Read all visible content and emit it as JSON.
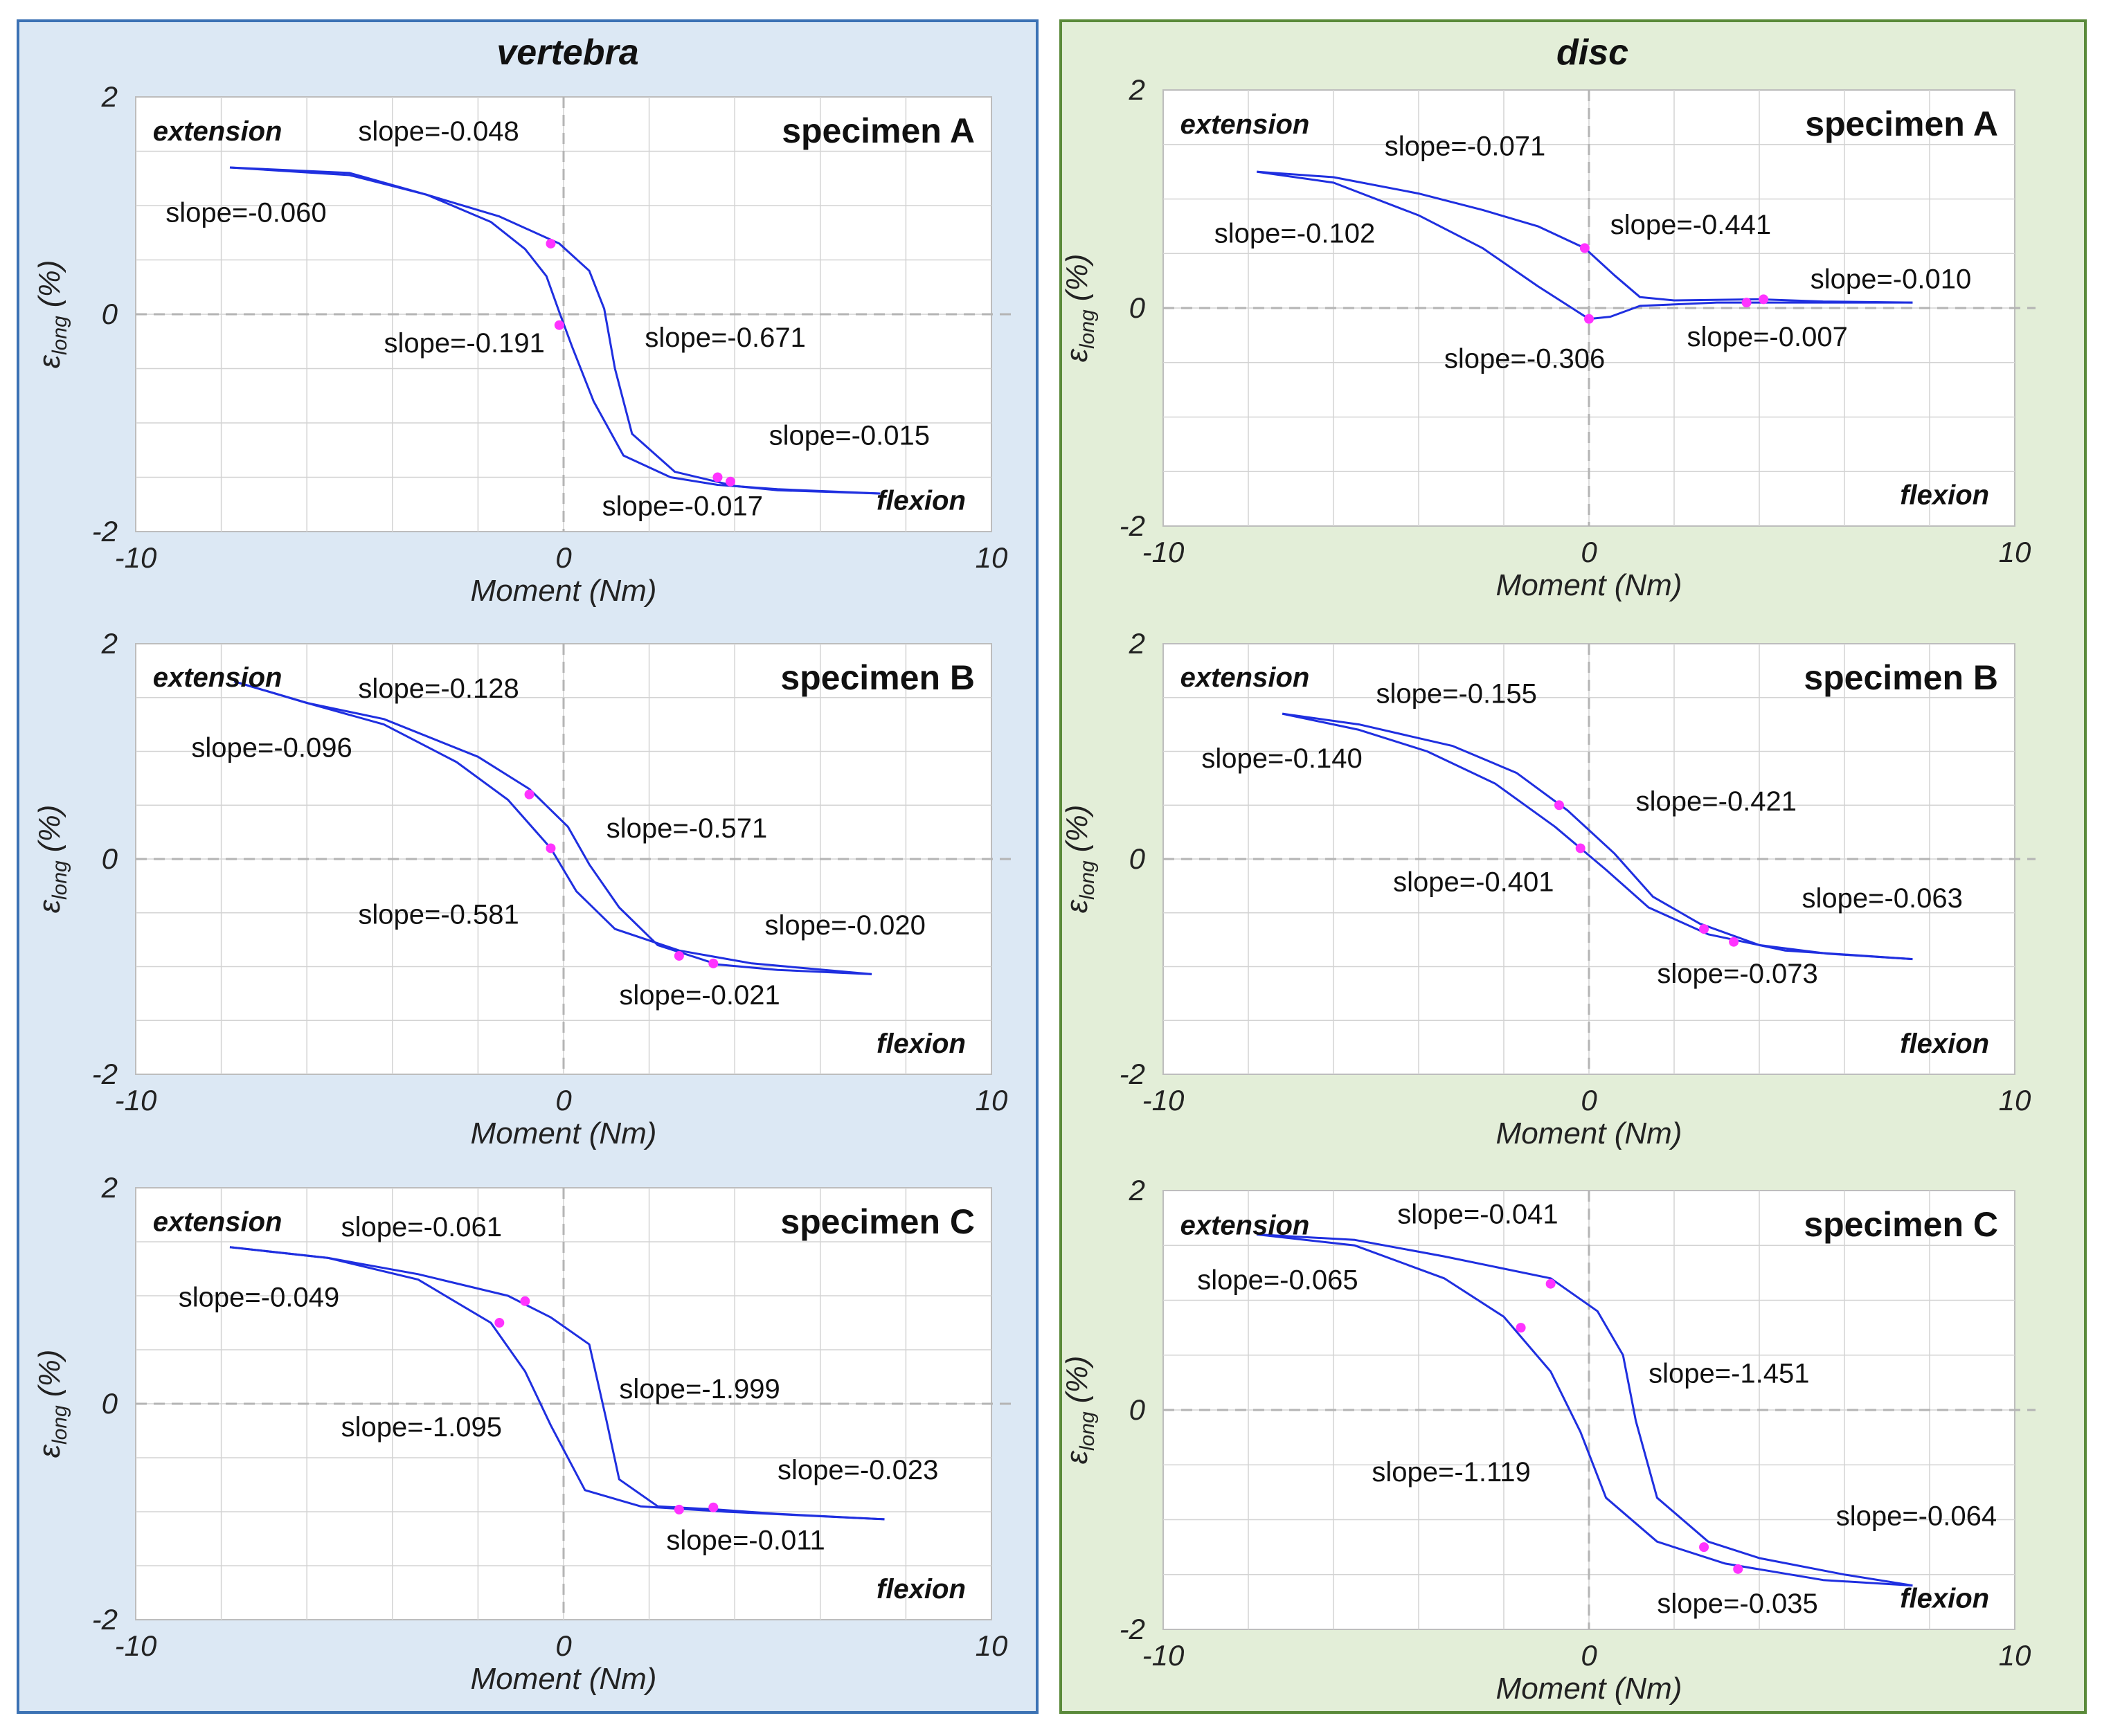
{
  "columns": [
    {
      "title": "vertebra"
    },
    {
      "title": "disc"
    }
  ],
  "styles": {
    "curve_color": "#1f2fe0",
    "point_color": "#ff33ff",
    "grid_color": "#d3d3d3",
    "zero_line_color": "#b4b4b4"
  },
  "chart_data": [
    {
      "id": "vA",
      "type": "line",
      "column": "vertebra",
      "title": "specimen A",
      "xlabel": "Moment (Nm)",
      "ylabel_main": "ε",
      "ylabel_sub": "long",
      "ylabel_tail": " (%)",
      "xlim": [
        -10,
        10
      ],
      "ylim": [
        -2,
        2
      ],
      "xticks": [
        -10,
        0,
        10
      ],
      "yticks": [
        -2,
        0,
        2
      ],
      "grid": true,
      "extension_label": "extension",
      "flexion_label": "flexion",
      "loading_path": [
        [
          -7.8,
          1.35
        ],
        [
          -5,
          1.3
        ],
        [
          -3.2,
          1.1
        ],
        [
          -1.7,
          0.85
        ],
        [
          -0.9,
          0.6
        ],
        [
          -0.4,
          0.35
        ],
        [
          -0.1,
          0.02
        ],
        [
          0.2,
          -0.3
        ],
        [
          0.7,
          -0.8
        ],
        [
          1.4,
          -1.3
        ],
        [
          2.5,
          -1.5
        ],
        [
          3.6,
          -1.57
        ],
        [
          5,
          -1.61
        ],
        [
          7.4,
          -1.65
        ]
      ],
      "unloading_path": [
        [
          7.4,
          -1.65
        ],
        [
          5,
          -1.62
        ],
        [
          4,
          -1.58
        ],
        [
          2.6,
          -1.45
        ],
        [
          1.6,
          -1.1
        ],
        [
          1.2,
          -0.5
        ],
        [
          0.95,
          0.05
        ],
        [
          0.6,
          0.4
        ],
        [
          -0.1,
          0.65
        ],
        [
          -1.5,
          0.9
        ],
        [
          -3.2,
          1.1
        ],
        [
          -5,
          1.28
        ],
        [
          -7.8,
          1.35
        ]
      ],
      "points": [
        [
          -0.3,
          0.65
        ],
        [
          -0.1,
          -0.1
        ],
        [
          3.6,
          -1.5
        ],
        [
          3.9,
          -1.54
        ]
      ],
      "slopes": [
        {
          "text": "slope=-0.048",
          "x": -4.8,
          "y": 1.6
        },
        {
          "text": "slope=-0.060",
          "x": -9.3,
          "y": 0.85
        },
        {
          "text": "slope=-0.191",
          "x": -4.2,
          "y": -0.35
        },
        {
          "text": "slope=-0.671",
          "x": 1.9,
          "y": -0.3
        },
        {
          "text": "slope=-0.015",
          "x": 4.8,
          "y": -1.2
        },
        {
          "text": "slope=-0.017",
          "x": 0.9,
          "y": -1.85
        }
      ]
    },
    {
      "id": "vB",
      "type": "line",
      "column": "vertebra",
      "title": "specimen B",
      "xlabel": "Moment (Nm)",
      "ylabel_main": "ε",
      "ylabel_sub": "long",
      "ylabel_tail": " (%)",
      "xlim": [
        -10,
        10
      ],
      "ylim": [
        -2,
        2
      ],
      "xticks": [
        -10,
        0,
        10
      ],
      "yticks": [
        -2,
        0,
        2
      ],
      "grid": true,
      "extension_label": "extension",
      "flexion_label": "flexion",
      "loading_path": [
        [
          -7.7,
          1.65
        ],
        [
          -6,
          1.45
        ],
        [
          -4.2,
          1.25
        ],
        [
          -2.5,
          0.9
        ],
        [
          -1.3,
          0.55
        ],
        [
          -0.3,
          0.1
        ],
        [
          0.3,
          -0.3
        ],
        [
          1.2,
          -0.65
        ],
        [
          2.7,
          -0.85
        ],
        [
          4.4,
          -0.97
        ],
        [
          7.2,
          -1.07
        ]
      ],
      "unloading_path": [
        [
          7.2,
          -1.07
        ],
        [
          5,
          -1.03
        ],
        [
          3.6,
          -0.98
        ],
        [
          2.2,
          -0.8
        ],
        [
          1.3,
          -0.45
        ],
        [
          0.6,
          -0.05
        ],
        [
          0.1,
          0.3
        ],
        [
          -0.8,
          0.65
        ],
        [
          -2,
          0.95
        ],
        [
          -4.2,
          1.3
        ],
        [
          -6,
          1.45
        ],
        [
          -7.7,
          1.65
        ]
      ],
      "points": [
        [
          -0.8,
          0.6
        ],
        [
          -0.3,
          0.1
        ],
        [
          2.7,
          -0.9
        ],
        [
          3.5,
          -0.97
        ]
      ],
      "slopes": [
        {
          "text": "slope=-0.128",
          "x": -4.8,
          "y": 1.5
        },
        {
          "text": "slope=-0.096",
          "x": -8.7,
          "y": 0.95
        },
        {
          "text": "slope=-0.581",
          "x": -4.8,
          "y": -0.6
        },
        {
          "text": "slope=-0.571",
          "x": 1,
          "y": 0.2
        },
        {
          "text": "slope=-0.020",
          "x": 4.7,
          "y": -0.7
        },
        {
          "text": "slope=-0.021",
          "x": 1.3,
          "y": -1.35
        }
      ]
    },
    {
      "id": "vC",
      "type": "line",
      "column": "vertebra",
      "title": "specimen C",
      "xlabel": "Moment (Nm)",
      "ylabel_main": "ε",
      "ylabel_sub": "long",
      "ylabel_tail": " (%)",
      "xlim": [
        -10,
        10
      ],
      "ylim": [
        -2,
        2
      ],
      "xticks": [
        -10,
        0,
        10
      ],
      "yticks": [
        -2,
        0,
        2
      ],
      "grid": true,
      "extension_label": "extension",
      "flexion_label": "flexion",
      "loading_path": [
        [
          -7.8,
          1.45
        ],
        [
          -5.5,
          1.35
        ],
        [
          -3.4,
          1.15
        ],
        [
          -1.7,
          0.75
        ],
        [
          -0.9,
          0.3
        ],
        [
          -0.3,
          -0.2
        ],
        [
          0.5,
          -0.8
        ],
        [
          1.8,
          -0.95
        ],
        [
          3.8,
          -1
        ],
        [
          7.5,
          -1.07
        ]
      ],
      "unloading_path": [
        [
          7.5,
          -1.07
        ],
        [
          5,
          -1.02
        ],
        [
          3.6,
          -0.98
        ],
        [
          2.2,
          -0.95
        ],
        [
          1.3,
          -0.7
        ],
        [
          1,
          -0.15
        ],
        [
          0.6,
          0.55
        ],
        [
          -0.3,
          0.8
        ],
        [
          -1.3,
          1
        ],
        [
          -3.4,
          1.2
        ],
        [
          -5.5,
          1.35
        ],
        [
          -7.8,
          1.45
        ]
      ],
      "points": [
        [
          -1.5,
          0.75
        ],
        [
          -0.9,
          0.95
        ],
        [
          2.7,
          -0.98
        ],
        [
          3.5,
          -0.96
        ]
      ],
      "slopes": [
        {
          "text": "slope=-0.061",
          "x": -5.2,
          "y": 1.55
        },
        {
          "text": "slope=-0.049",
          "x": -9,
          "y": 0.9
        },
        {
          "text": "slope=-1.095",
          "x": -5.2,
          "y": -0.3
        },
        {
          "text": "slope=-1.999",
          "x": 1.3,
          "y": 0.05
        },
        {
          "text": "slope=-0.023",
          "x": 5,
          "y": -0.7
        },
        {
          "text": "slope=-0.011",
          "x": 2.4,
          "y": -1.35
        }
      ]
    },
    {
      "id": "dA",
      "type": "line",
      "column": "disc",
      "title": "specimen A",
      "xlabel": "Moment (Nm)",
      "ylabel_main": "ε",
      "ylabel_sub": "long",
      "ylabel_tail": " (%)",
      "xlim": [
        -10,
        10
      ],
      "ylim": [
        -2,
        2
      ],
      "xticks": [
        -10,
        0,
        10
      ],
      "yticks": [
        -2,
        0,
        2
      ],
      "grid": true,
      "extension_label": "extension",
      "flexion_label": "flexion",
      "loading_path": [
        [
          -7.8,
          1.25
        ],
        [
          -6,
          1.15
        ],
        [
          -4,
          0.85
        ],
        [
          -2.5,
          0.55
        ],
        [
          -1.2,
          0.2
        ],
        [
          -0.4,
          0
        ],
        [
          0,
          -0.1
        ],
        [
          0.5,
          -0.08
        ],
        [
          1.2,
          0.02
        ],
        [
          3,
          0.05
        ],
        [
          5,
          0.05
        ],
        [
          7.6,
          0.05
        ]
      ],
      "unloading_path": [
        [
          7.6,
          0.05
        ],
        [
          5.5,
          0.06
        ],
        [
          4,
          0.08
        ],
        [
          2,
          0.07
        ],
        [
          1.2,
          0.1
        ],
        [
          0.6,
          0.3
        ],
        [
          -0.1,
          0.55
        ],
        [
          -1.2,
          0.75
        ],
        [
          -2.5,
          0.9
        ],
        [
          -4,
          1.05
        ],
        [
          -6,
          1.2
        ],
        [
          -7.8,
          1.25
        ]
      ],
      "points": [
        [
          -0.1,
          0.55
        ],
        [
          0,
          -0.1
        ],
        [
          3.7,
          0.05
        ],
        [
          4.1,
          0.08
        ]
      ],
      "slopes": [
        {
          "text": "slope=-0.071",
          "x": -4.8,
          "y": 1.4
        },
        {
          "text": "slope=-0.102",
          "x": -8.8,
          "y": 0.6
        },
        {
          "text": "slope=-0.441",
          "x": 0.5,
          "y": 0.68
        },
        {
          "text": "slope=-0.306",
          "x": -3.4,
          "y": -0.55
        },
        {
          "text": "slope=-0.007",
          "x": 2.3,
          "y": -0.35
        },
        {
          "text": "slope=-0.010",
          "x": 5.2,
          "y": 0.18
        }
      ]
    },
    {
      "id": "dB",
      "type": "line",
      "column": "disc",
      "title": "specimen B",
      "xlabel": "Moment (Nm)",
      "ylabel_main": "ε",
      "ylabel_sub": "long",
      "ylabel_tail": " (%)",
      "xlim": [
        -10,
        10
      ],
      "ylim": [
        -2,
        2
      ],
      "xticks": [
        -10,
        0,
        10
      ],
      "yticks": [
        -2,
        0,
        2
      ],
      "grid": true,
      "extension_label": "extension",
      "flexion_label": "flexion",
      "loading_path": [
        [
          -7.2,
          1.35
        ],
        [
          -5.4,
          1.2
        ],
        [
          -3.8,
          1
        ],
        [
          -2.2,
          0.7
        ],
        [
          -0.8,
          0.3
        ],
        [
          0.4,
          -0.1
        ],
        [
          1.4,
          -0.45
        ],
        [
          2.8,
          -0.7
        ],
        [
          4.6,
          -0.85
        ],
        [
          7.6,
          -0.93
        ]
      ],
      "unloading_path": [
        [
          7.6,
          -0.93
        ],
        [
          5.6,
          -0.88
        ],
        [
          4,
          -0.8
        ],
        [
          2.6,
          -0.6
        ],
        [
          1.5,
          -0.35
        ],
        [
          0.6,
          0.05
        ],
        [
          -0.5,
          0.45
        ],
        [
          -1.7,
          0.8
        ],
        [
          -3.2,
          1.05
        ],
        [
          -5.4,
          1.25
        ],
        [
          -7.2,
          1.35
        ]
      ],
      "points": [
        [
          -0.7,
          0.5
        ],
        [
          -0.2,
          0.1
        ],
        [
          2.7,
          -0.65
        ],
        [
          3.4,
          -0.77
        ]
      ],
      "slopes": [
        {
          "text": "slope=-0.155",
          "x": -5,
          "y": 1.45
        },
        {
          "text": "slope=-0.140",
          "x": -9.1,
          "y": 0.85
        },
        {
          "text": "slope=-0.421",
          "x": 1.1,
          "y": 0.45
        },
        {
          "text": "slope=-0.401",
          "x": -4.6,
          "y": -0.3
        },
        {
          "text": "slope=-0.063",
          "x": 5,
          "y": -0.45
        },
        {
          "text": "slope=-0.073",
          "x": 1.6,
          "y": -1.15
        }
      ]
    },
    {
      "id": "dC",
      "type": "line",
      "column": "disc",
      "title": "specimen C",
      "xlabel": "Moment (Nm)",
      "ylabel_main": "ε",
      "ylabel_sub": "long",
      "ylabel_tail": " (%)",
      "xlim": [
        -10,
        10
      ],
      "ylim": [
        -2,
        2
      ],
      "xticks": [
        -10,
        0,
        10
      ],
      "yticks": [
        -2,
        0,
        2
      ],
      "grid": true,
      "extension_label": "extension",
      "flexion_label": "flexion",
      "loading_path": [
        [
          -7.8,
          1.6
        ],
        [
          -5.5,
          1.5
        ],
        [
          -3.4,
          1.2
        ],
        [
          -2,
          0.85
        ],
        [
          -0.9,
          0.35
        ],
        [
          -0.2,
          -0.2
        ],
        [
          0.4,
          -0.8
        ],
        [
          1.6,
          -1.2
        ],
        [
          3.2,
          -1.4
        ],
        [
          5.5,
          -1.55
        ],
        [
          7.6,
          -1.6
        ]
      ],
      "unloading_path": [
        [
          7.6,
          -1.6
        ],
        [
          6,
          -1.5
        ],
        [
          4,
          -1.35
        ],
        [
          2.8,
          -1.2
        ],
        [
          1.6,
          -0.8
        ],
        [
          1.1,
          -0.1
        ],
        [
          0.8,
          0.5
        ],
        [
          0.2,
          0.9
        ],
        [
          -0.9,
          1.2
        ],
        [
          -3.4,
          1.4
        ],
        [
          -5.5,
          1.55
        ],
        [
          -7.8,
          1.6
        ]
      ],
      "points": [
        [
          -1.6,
          0.75
        ],
        [
          -0.9,
          1.15
        ],
        [
          2.7,
          -1.25
        ],
        [
          3.5,
          -1.45
        ]
      ],
      "slopes": [
        {
          "text": "slope=-0.041",
          "x": -4.5,
          "y": 1.7
        },
        {
          "text": "slope=-0.065",
          "x": -9.2,
          "y": 1.1
        },
        {
          "text": "slope=-1.451",
          "x": 1.4,
          "y": 0.25
        },
        {
          "text": "slope=-1.119",
          "x": -5.1,
          "y": -0.65
        },
        {
          "text": "slope=-0.064",
          "x": 5.8,
          "y": -1.05
        },
        {
          "text": "slope=-0.035",
          "x": 1.6,
          "y": -1.85
        }
      ]
    }
  ]
}
